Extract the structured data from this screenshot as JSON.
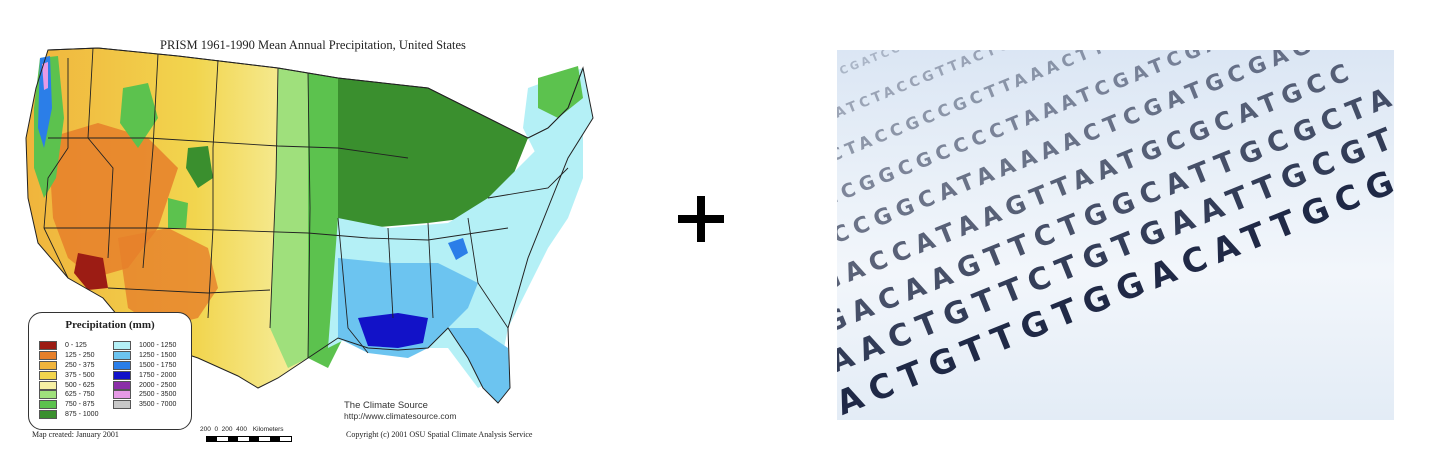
{
  "map": {
    "title": "PRISM 1961-1990 Mean Annual Precipitation, United States",
    "legend_title": "Precipitation (mm)",
    "legend": [
      {
        "range": "0 - 125",
        "color": "#9c1c14"
      },
      {
        "range": "125 - 250",
        "color": "#e67f2a"
      },
      {
        "range": "250 - 375",
        "color": "#f0b43c"
      },
      {
        "range": "375 - 500",
        "color": "#f2d54e"
      },
      {
        "range": "500 - 625",
        "color": "#f6f0a4"
      },
      {
        "range": "625 - 750",
        "color": "#9fe07c"
      },
      {
        "range": "750 - 875",
        "color": "#5cc24e"
      },
      {
        "range": "875 - 1000",
        "color": "#3a8f2e"
      },
      {
        "range": "1000 - 1250",
        "color": "#b4f0f6"
      },
      {
        "range": "1250 - 1500",
        "color": "#6cc4f0"
      },
      {
        "range": "1500 - 1750",
        "color": "#2b7ee8"
      },
      {
        "range": "1750 - 2000",
        "color": "#1212c8"
      },
      {
        "range": "2000 - 2500",
        "color": "#8b2ea8"
      },
      {
        "range": "2500 - 3500",
        "color": "#e69ae6"
      },
      {
        "range": "3500 - 7000",
        "color": "#c8c8c8"
      }
    ],
    "map_created": "Map created: January 2001",
    "scale_ticks": "200  0  200  400",
    "scale_unit": "Kilometers",
    "credit_name": "The Climate Source",
    "credit_url": "http://www.climatesource.com",
    "copyright": "Copyright (c) 2001 OSU Spatial Climate Analysis Service"
  },
  "plus_symbol": "+",
  "dna": {
    "lines": [
      "ACTTTTCGATCCAGTGGCATTCACGCATC",
      "GTTGATCTACCGTTACTCCAAACTCGTTAC",
      "TACCTACCGCCGCTTAAACTTCGATGCAG",
      "TACCGGCGCCCCTAAATCGATCGATCAGA",
      "CACCGGCATAAAAACTCGATGCGAGCAG",
      "GGACCATAAGTTAATGCGCATGCC",
      "AGACAAGTTCTGGCATTGCGCTA",
      "AAACTGTTCTGTGAATTGCGTCAT",
      "GACTGTTGTGGACATTGCGTCG"
    ]
  }
}
